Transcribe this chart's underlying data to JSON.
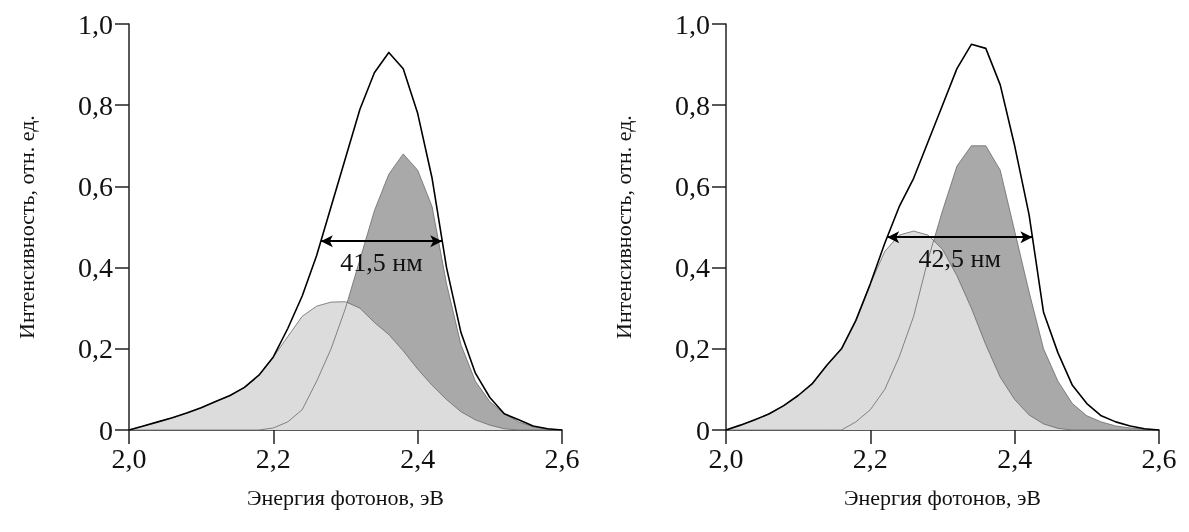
{
  "chart_data": [
    {
      "type": "area",
      "xlabel": "Энергия фотонов, эВ",
      "ylabel": "Интенсивность, отн. ед.",
      "x": [
        2.0,
        2.02,
        2.04,
        2.06,
        2.08,
        2.1,
        2.12,
        2.14,
        2.16,
        2.18,
        2.2,
        2.22,
        2.24,
        2.26,
        2.28,
        2.3,
        2.32,
        2.34,
        2.36,
        2.38,
        2.4,
        2.42,
        2.44,
        2.46,
        2.48,
        2.5,
        2.52,
        2.54,
        2.56,
        2.58,
        2.6
      ],
      "series": [
        {
          "type": "area",
          "color": "#a9a9a9",
          "values": [
            0,
            0,
            0,
            0,
            0,
            0,
            0,
            0,
            0,
            0,
            0.005,
            0.02,
            0.05,
            0.12,
            0.2,
            0.3,
            0.42,
            0.54,
            0.63,
            0.68,
            0.64,
            0.55,
            0.36,
            0.21,
            0.12,
            0.07,
            0.04,
            0.02,
            0.008,
            0.002,
            0
          ]
        },
        {
          "type": "area",
          "color": "#dcdcdc",
          "values": [
            0,
            0.01,
            0.02,
            0.03,
            0.042,
            0.055,
            0.07,
            0.085,
            0.105,
            0.135,
            0.18,
            0.23,
            0.28,
            0.305,
            0.315,
            0.316,
            0.3,
            0.265,
            0.235,
            0.195,
            0.15,
            0.11,
            0.075,
            0.045,
            0.025,
            0.012,
            0.003,
            0,
            0,
            0,
            0
          ]
        },
        {
          "type": "line",
          "color": "#000000",
          "values": [
            0,
            0.01,
            0.02,
            0.03,
            0.042,
            0.055,
            0.07,
            0.085,
            0.105,
            0.135,
            0.18,
            0.25,
            0.33,
            0.43,
            0.55,
            0.67,
            0.79,
            0.88,
            0.93,
            0.89,
            0.78,
            0.62,
            0.4,
            0.24,
            0.14,
            0.08,
            0.04,
            0.025,
            0.01,
            0.003,
            0
          ]
        }
      ],
      "xlim": [
        2.0,
        2.6
      ],
      "xticks": [
        {
          "value": 2.0,
          "label": "2,0"
        },
        {
          "value": 2.2,
          "label": "2,2"
        },
        {
          "value": 2.4,
          "label": "2,4"
        },
        {
          "value": 2.6,
          "label": "2,6"
        }
      ],
      "ylim": [
        0,
        1
      ],
      "yticks": [
        0,
        {
          "value": 0.2,
          "label": "0,2"
        },
        {
          "value": 0.4,
          "label": "0,4"
        },
        {
          "value": 0.6,
          "label": "0,6"
        },
        {
          "value": 0.8,
          "label": "0,8"
        },
        {
          "value": 1.0,
          "label": "1,0"
        }
      ],
      "annotations": [
        "41,5 нм"
      ]
    },
    {
      "type": "area",
      "xlabel": "Энергия фотонов, эВ",
      "ylabel": "Интенсивность, отн. ед.",
      "x": [
        2.0,
        2.02,
        2.04,
        2.06,
        2.08,
        2.1,
        2.12,
        2.14,
        2.16,
        2.18,
        2.2,
        2.22,
        2.24,
        2.26,
        2.28,
        2.3,
        2.32,
        2.34,
        2.36,
        2.38,
        2.4,
        2.42,
        2.44,
        2.46,
        2.48,
        2.5,
        2.52,
        2.54,
        2.56,
        2.58,
        2.6
      ],
      "series": [
        {
          "type": "area",
          "color": "#a9a9a9",
          "values": [
            0,
            0,
            0,
            0,
            0,
            0,
            0,
            0,
            0,
            0.02,
            0.05,
            0.1,
            0.18,
            0.28,
            0.42,
            0.54,
            0.65,
            0.7,
            0.7,
            0.64,
            0.49,
            0.34,
            0.2,
            0.12,
            0.065,
            0.035,
            0.02,
            0.01,
            0.005,
            0.002,
            0
          ]
        },
        {
          "type": "area",
          "color": "#dcdcdc",
          "values": [
            0,
            0.012,
            0.025,
            0.04,
            0.06,
            0.085,
            0.115,
            0.16,
            0.2,
            0.27,
            0.36,
            0.44,
            0.48,
            0.49,
            0.48,
            0.445,
            0.38,
            0.3,
            0.21,
            0.13,
            0.075,
            0.037,
            0.015,
            0.004,
            0,
            0,
            0,
            0,
            0,
            0,
            0
          ]
        },
        {
          "type": "line",
          "color": "#000000",
          "values": [
            0,
            0.012,
            0.025,
            0.04,
            0.06,
            0.085,
            0.115,
            0.16,
            0.2,
            0.27,
            0.36,
            0.46,
            0.55,
            0.62,
            0.71,
            0.8,
            0.89,
            0.95,
            0.94,
            0.85,
            0.7,
            0.53,
            0.29,
            0.19,
            0.11,
            0.065,
            0.035,
            0.02,
            0.01,
            0.003,
            0
          ]
        }
      ],
      "xlim": [
        2.0,
        2.6
      ],
      "xticks": [
        {
          "value": 2.0,
          "label": "2,0"
        },
        {
          "value": 2.2,
          "label": "2,2"
        },
        {
          "value": 2.4,
          "label": "2,4"
        },
        {
          "value": 2.6,
          "label": "2,6"
        }
      ],
      "ylim": [
        0,
        1
      ],
      "yticks": [
        0,
        {
          "value": 0.2,
          "label": "0,2"
        },
        {
          "value": 0.4,
          "label": "0,4"
        },
        {
          "value": 0.6,
          "label": "0,6"
        },
        {
          "value": 0.8,
          "label": "0,8"
        },
        {
          "value": 1.0,
          "label": "1,0"
        }
      ],
      "annotations": [
        "42,5 нм"
      ]
    }
  ]
}
